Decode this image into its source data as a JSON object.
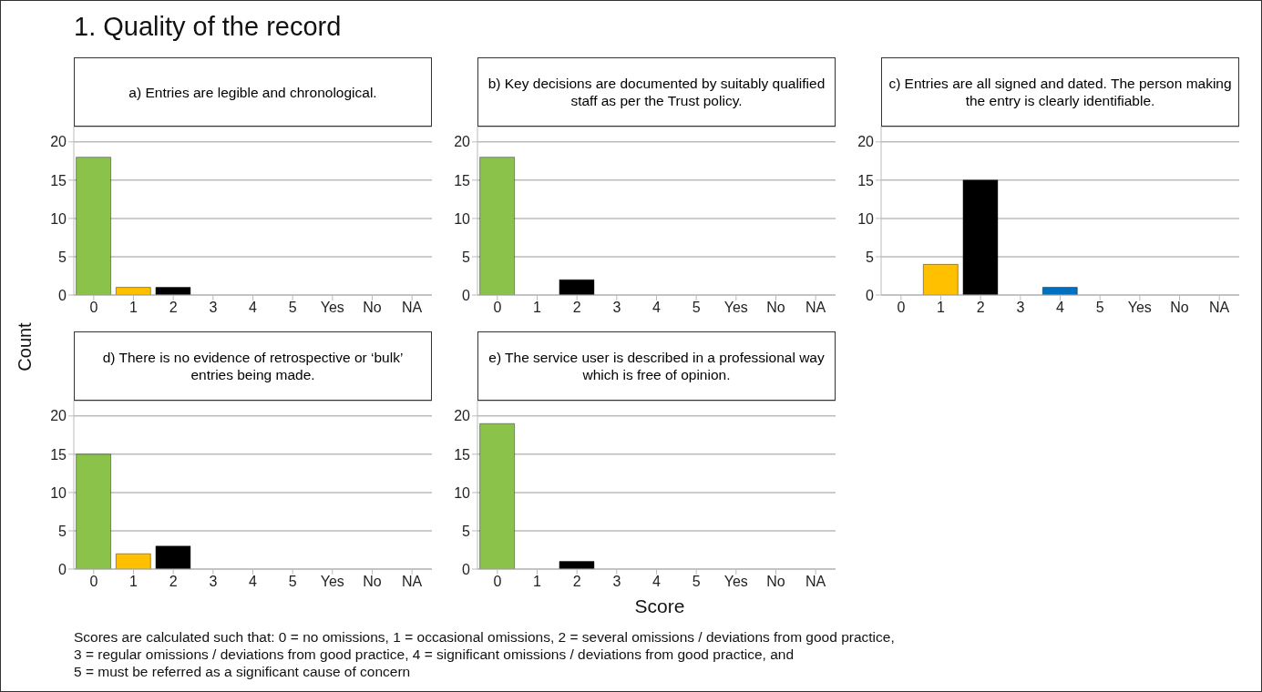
{
  "chart_data": [
    {
      "type": "bar",
      "title": "1. Quality of the record",
      "subtitle": "a) Entries are legible and chronological.",
      "ylabel": "Count",
      "categories": [
        "0",
        "1",
        "2",
        "3",
        "4",
        "5",
        "Yes",
        "No",
        "NA"
      ],
      "values": [
        18,
        1,
        1,
        0,
        0,
        0,
        0,
        0,
        0
      ],
      "colors": [
        "#8bc34a",
        "#ffc000",
        "#000000",
        null,
        null,
        null,
        null,
        null,
        null
      ],
      "ylim": [
        0,
        22
      ],
      "yticks": [
        0,
        5,
        10,
        15,
        20
      ],
      "grid": "y",
      "annotations": [
        "Scores are calculated such that: 0 = no omissions, 1 = occasional omissions, 2 = several omissions / deviations from good practice,",
        "3 = regular omissions / deviations from good practice, 4 = significant omissions / deviations from good practice, and",
        "5 = must be referred as a significant cause of concern"
      ]
    },
    {
      "type": "bar",
      "subtitle": "b) Key decisions are documented by suitably qualified staff as per the Trust policy.",
      "categories": [
        "0",
        "1",
        "2",
        "3",
        "4",
        "5",
        "Yes",
        "No",
        "NA"
      ],
      "values": [
        18,
        0,
        2,
        0,
        0,
        0,
        0,
        0,
        0
      ],
      "colors": [
        "#8bc34a",
        null,
        "#000000",
        null,
        null,
        null,
        null,
        null,
        null
      ],
      "ylim": [
        0,
        22
      ],
      "yticks": [
        0,
        5,
        10,
        15,
        20
      ],
      "grid": "y"
    },
    {
      "type": "bar",
      "subtitle": "c) Entries are all signed and dated. The person making the entry is clearly identifiable.",
      "categories": [
        "0",
        "1",
        "2",
        "3",
        "4",
        "5",
        "Yes",
        "No",
        "NA"
      ],
      "values": [
        0,
        4,
        15,
        0,
        1,
        0,
        0,
        0,
        0
      ],
      "colors": [
        null,
        "#ffc000",
        "#000000",
        null,
        "#0070c0",
        null,
        null,
        null,
        null
      ],
      "ylim": [
        0,
        22
      ],
      "yticks": [
        0,
        5,
        10,
        15,
        20
      ],
      "grid": "y"
    },
    {
      "type": "bar",
      "subtitle": "d) There is no evidence of retrospective or ‘bulk’ entries being made.",
      "categories": [
        "0",
        "1",
        "2",
        "3",
        "4",
        "5",
        "Yes",
        "No",
        "NA"
      ],
      "values": [
        15,
        2,
        3,
        0,
        0,
        0,
        0,
        0,
        0
      ],
      "colors": [
        "#8bc34a",
        "#ffc000",
        "#000000",
        null,
        null,
        null,
        null,
        null,
        null
      ],
      "ylim": [
        0,
        22
      ],
      "yticks": [
        0,
        5,
        10,
        15,
        20
      ],
      "grid": "y"
    },
    {
      "type": "bar",
      "subtitle": "e) The service user is described in a professional way which is free of opinion.",
      "xlabel": "Score",
      "categories": [
        "0",
        "1",
        "2",
        "3",
        "4",
        "5",
        "Yes",
        "No",
        "NA"
      ],
      "values": [
        19,
        0,
        1,
        0,
        0,
        0,
        0,
        0,
        0
      ],
      "colors": [
        "#8bc34a",
        null,
        "#000000",
        null,
        null,
        null,
        null,
        null,
        null
      ],
      "ylim": [
        0,
        22
      ],
      "yticks": [
        0,
        5,
        10,
        15,
        20
      ],
      "grid": "y"
    }
  ]
}
